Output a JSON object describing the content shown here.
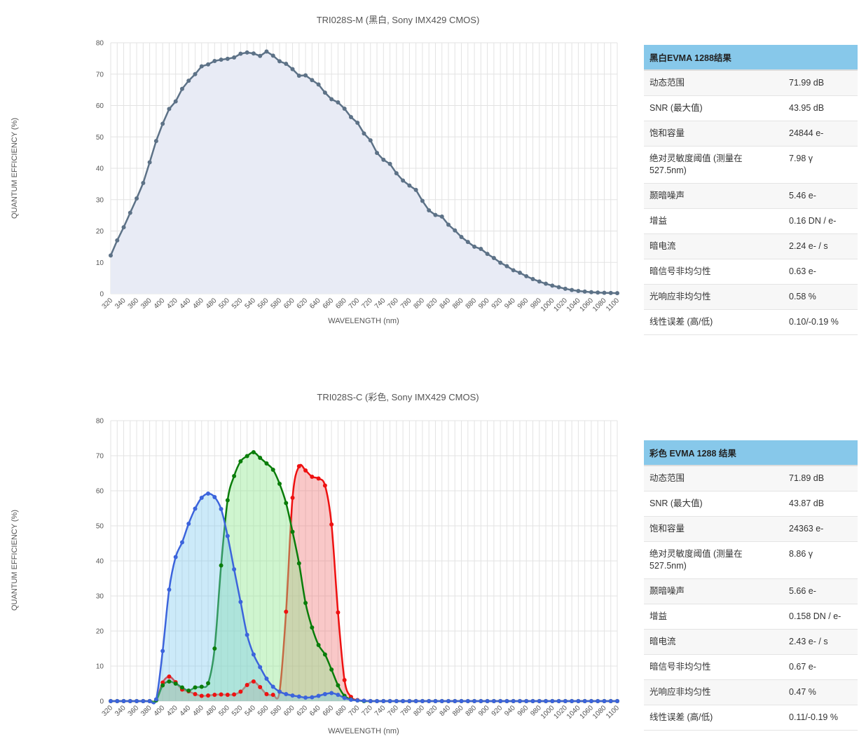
{
  "mono_table": {
    "title": "黑白EVMA 1288结果",
    "rows": [
      {
        "label": "动态范围",
        "value": "71.99 dB"
      },
      {
        "label": "SNR (最大值)",
        "value": "43.95 dB"
      },
      {
        "label": "饱和容量",
        "value": "24844 e-"
      },
      {
        "label": "绝对灵敏度阈值 (测量在527.5nm)",
        "value": "7.98 γ"
      },
      {
        "label": "颞暗噪声",
        "value": "5.46 e-"
      },
      {
        "label": "增益",
        "value": "0.16 DN / e-"
      },
      {
        "label": "暗电流",
        "value": "2.24 e- / s"
      },
      {
        "label": "暗信号非均匀性",
        "value": "0.63 e-"
      },
      {
        "label": "光响应非均匀性",
        "value": "0.58 %"
      },
      {
        "label": "线性误差 (高/低)",
        "value": "0.10/-0.19 %"
      }
    ]
  },
  "color_table": {
    "title": "彩色 EVMA 1288 结果",
    "rows": [
      {
        "label": "动态范围",
        "value": "71.89 dB"
      },
      {
        "label": "SNR (最大值)",
        "value": "43.87 dB"
      },
      {
        "label": "饱和容量",
        "value": "24363 e-"
      },
      {
        "label": "绝对灵敏度阈值 (测量在527.5nm)",
        "value": "8.86 γ"
      },
      {
        "label": "颞暗噪声",
        "value": "5.66 e-"
      },
      {
        "label": "增益",
        "value": "0.158 DN / e-"
      },
      {
        "label": "暗电流",
        "value": "2.43 e- / s"
      },
      {
        "label": "暗信号非均匀性",
        "value": "0.67 e-"
      },
      {
        "label": "光响应非均匀性",
        "value": "0.47 %"
      },
      {
        "label": "线性误差 (高/低)",
        "value": "0.11/-0.19 %"
      }
    ]
  },
  "chart_data": [
    {
      "type": "area",
      "title": "TRI028S-M (黑白, Sony IMX429 CMOS)",
      "xlabel": "WAVELENGTH (nm)",
      "ylabel": "QUANTUM EFFICIENCY (%)",
      "xlim": [
        320,
        1100
      ],
      "ylim": [
        0,
        80
      ],
      "x_ticks": [
        320,
        340,
        360,
        380,
        400,
        420,
        440,
        460,
        480,
        500,
        520,
        540,
        560,
        580,
        600,
        620,
        640,
        660,
        680,
        700,
        720,
        740,
        760,
        780,
        800,
        820,
        840,
        860,
        880,
        900,
        920,
        940,
        960,
        980,
        1000,
        1020,
        1040,
        1060,
        1080,
        1100
      ],
      "y_ticks": [
        0,
        10,
        20,
        30,
        40,
        50,
        60,
        70,
        80
      ],
      "grid": true,
      "series": [
        {
          "color": "#5d7287",
          "fill": "#e8ebf5",
          "x": [
            320,
            330,
            340,
            350,
            360,
            370,
            380,
            390,
            400,
            410,
            420,
            430,
            440,
            450,
            460,
            470,
            480,
            490,
            500,
            510,
            520,
            530,
            540,
            550,
            560,
            570,
            580,
            590,
            600,
            610,
            620,
            630,
            640,
            650,
            660,
            670,
            680,
            690,
            700,
            710,
            720,
            730,
            740,
            750,
            760,
            770,
            780,
            790,
            800,
            810,
            820,
            830,
            840,
            850,
            860,
            870,
            880,
            890,
            900,
            910,
            920,
            930,
            940,
            950,
            960,
            970,
            980,
            990,
            1000,
            1010,
            1020,
            1030,
            1040,
            1050,
            1060,
            1070,
            1080,
            1090,
            1100
          ],
          "values": [
            12.2,
            17.0,
            21.2,
            25.8,
            30.4,
            35.3,
            41.9,
            48.7,
            54.2,
            58.9,
            61.3,
            65.3,
            67.9,
            70.0,
            72.5,
            73.1,
            74.2,
            74.6,
            74.9,
            75.3,
            76.5,
            76.9,
            76.6,
            75.8,
            77.2,
            75.9,
            74.1,
            73.3,
            71.6,
            69.5,
            69.6,
            68.1,
            66.7,
            64.1,
            62.0,
            61.0,
            59.0,
            56.3,
            54.5,
            51.1,
            48.9,
            44.9,
            42.7,
            41.4,
            38.4,
            36.1,
            34.5,
            33.1,
            29.6,
            26.6,
            25.1,
            24.6,
            22.0,
            20.2,
            18.1,
            16.5,
            15.0,
            14.3,
            12.7,
            11.4,
            9.9,
            8.8,
            7.5,
            6.7,
            5.6,
            4.7,
            3.9,
            3.2,
            2.6,
            2.1,
            1.6,
            1.2,
            0.9,
            0.7,
            0.5,
            0.4,
            0.3,
            0.25,
            0.2
          ]
        }
      ]
    },
    {
      "type": "area",
      "title": "TRI028S-C (彩色, Sony IMX429 CMOS)",
      "xlabel": "WAVELENGTH (nm)",
      "ylabel": "QUANTUM EFFICIENCY (%)",
      "xlim": [
        320,
        1100
      ],
      "ylim": [
        0,
        80
      ],
      "x_ticks": [
        320,
        340,
        360,
        380,
        400,
        420,
        440,
        460,
        480,
        500,
        520,
        540,
        560,
        580,
        600,
        620,
        640,
        660,
        680,
        700,
        720,
        740,
        760,
        780,
        800,
        820,
        840,
        860,
        880,
        900,
        920,
        940,
        960,
        980,
        1000,
        1020,
        1040,
        1060,
        1080,
        1100
      ],
      "y_ticks": [
        0,
        10,
        20,
        30,
        40,
        50,
        60,
        70,
        80
      ],
      "grid": true,
      "x": [
        320,
        330,
        340,
        350,
        360,
        370,
        380,
        390,
        400,
        410,
        420,
        430,
        440,
        450,
        460,
        470,
        480,
        490,
        500,
        510,
        520,
        530,
        540,
        550,
        560,
        570,
        580,
        590,
        600,
        610,
        620,
        630,
        640,
        650,
        660,
        670,
        680,
        690,
        700,
        710,
        720,
        730,
        740,
        750,
        760,
        770,
        780,
        790,
        800,
        810,
        820,
        830,
        840,
        850,
        860,
        870,
        880,
        890,
        900,
        910,
        920,
        930,
        940,
        950,
        960,
        970,
        980,
        990,
        1000,
        1010,
        1020,
        1030,
        1040,
        1050,
        1060,
        1070,
        1080,
        1090,
        1100
      ],
      "series": [
        {
          "color": "#ee1111",
          "fill": "rgba(240,110,110,0.38)",
          "values": [
            0,
            0,
            0,
            0,
            0,
            0,
            0,
            0.3,
            5.3,
            7.0,
            5.4,
            3.3,
            2.8,
            2.0,
            1.5,
            1.6,
            1.8,
            1.9,
            1.8,
            1.9,
            2.7,
            4.6,
            5.6,
            4.0,
            2.0,
            1.8,
            2.7,
            25.5,
            58.0,
            67.0,
            65.8,
            64.0,
            63.5,
            61.5,
            50.4,
            25.3,
            6.0,
            1.2,
            0.3,
            0.1,
            0,
            0,
            0,
            0,
            0,
            0,
            0,
            0,
            0,
            0,
            0,
            0,
            0,
            0,
            0,
            0,
            0,
            0,
            0,
            0,
            0,
            0,
            0,
            0,
            0,
            0,
            0,
            0,
            0,
            0,
            0,
            0,
            0,
            0,
            0,
            0,
            0,
            0,
            0
          ]
        },
        {
          "color": "#0a7d0a",
          "fill": "rgba(140,230,140,0.42)",
          "values": [
            0,
            0,
            0,
            0,
            0,
            0,
            0,
            0.2,
            4.5,
            5.6,
            5.0,
            3.9,
            3.0,
            3.9,
            4.1,
            5.1,
            15.0,
            38.7,
            57.3,
            64.2,
            68.4,
            69.9,
            71.0,
            69.4,
            67.8,
            66.0,
            62.0,
            56.5,
            48.3,
            39.3,
            28.0,
            21.0,
            16.0,
            13.3,
            9.0,
            4.5,
            1.5,
            0.5,
            0.2,
            0,
            0,
            0,
            0,
            0,
            0,
            0,
            0,
            0,
            0,
            0,
            0,
            0,
            0,
            0,
            0,
            0,
            0,
            0,
            0,
            0,
            0,
            0,
            0,
            0,
            0,
            0,
            0,
            0,
            0,
            0,
            0,
            0,
            0,
            0,
            0,
            0,
            0,
            0,
            0
          ]
        },
        {
          "color": "#3c64dc",
          "fill": "rgba(120,200,240,0.38)",
          "values": [
            0,
            0,
            0,
            0,
            0,
            0,
            0,
            0.5,
            14.3,
            31.8,
            41.1,
            45.3,
            50.6,
            54.9,
            58.0,
            59.2,
            58.2,
            54.8,
            47.1,
            37.6,
            28.3,
            18.9,
            13.3,
            9.7,
            6.4,
            4.1,
            2.7,
            2.0,
            1.6,
            1.3,
            1.0,
            1.1,
            1.5,
            2.0,
            2.3,
            1.8,
            0.9,
            0.4,
            0.2,
            0.1,
            0,
            0,
            0,
            0,
            0,
            0,
            0,
            0,
            0,
            0,
            0,
            0,
            0,
            0,
            0,
            0,
            0,
            0,
            0,
            0,
            0,
            0,
            0,
            0,
            0,
            0,
            0,
            0,
            0,
            0,
            0,
            0,
            0,
            0,
            0,
            0,
            0,
            0,
            0
          ]
        }
      ]
    }
  ]
}
